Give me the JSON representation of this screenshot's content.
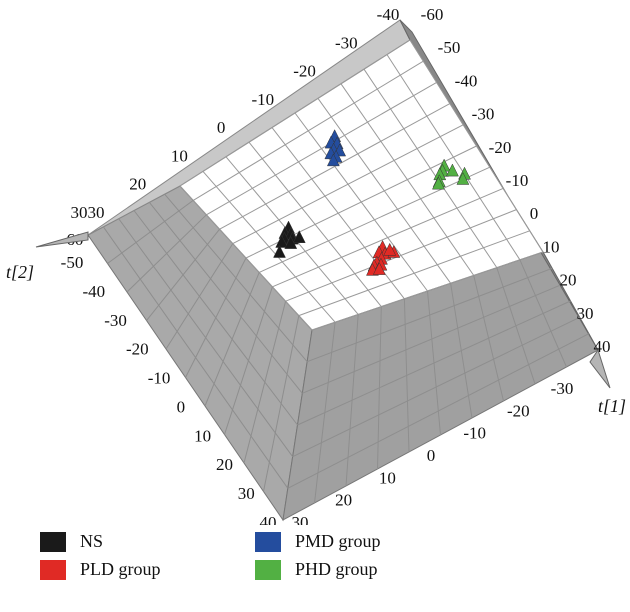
{
  "chart_data": {
    "type": "scatter",
    "view": "3d",
    "axes": {
      "t1": {
        "label": "t[1]",
        "ticks": [
          -30,
          -20,
          -10,
          0,
          10,
          20,
          30,
          40
        ]
      },
      "t2": {
        "label": "t[2]",
        "ticks": [
          -60,
          -50,
          -40,
          -30,
          -20,
          -10,
          0,
          10,
          20,
          30
        ]
      },
      "t3_bottom": {
        "ticks": [
          30,
          20,
          10,
          0,
          -10,
          -20,
          -30,
          -40,
          -50
        ]
      },
      "t3_right": {
        "ticks": [
          -60,
          -50,
          -40,
          -30,
          -20,
          -10,
          0,
          10,
          20,
          30,
          40
        ]
      },
      "t_top": {
        "ticks": [
          -40,
          -30,
          -20,
          -10,
          0,
          10,
          20,
          30
        ]
      },
      "left_extra": {
        "ticks": [
          -50,
          -40,
          -30,
          -20,
          -10,
          0,
          10,
          20,
          30,
          40
        ]
      }
    },
    "series": [
      {
        "name": "NS",
        "color": "#1a1a1a",
        "points": [
          [
            -5,
            35
          ],
          [
            -3,
            38
          ],
          [
            -1,
            36
          ],
          [
            0,
            40
          ],
          [
            2,
            37
          ],
          [
            3,
            34
          ],
          [
            1,
            42
          ],
          [
            4,
            39
          ],
          [
            6,
            46
          ]
        ]
      },
      {
        "name": "PLD group",
        "color": "#e02a25",
        "points": [
          [
            28,
            5
          ],
          [
            30,
            8
          ],
          [
            32,
            6
          ],
          [
            34,
            9
          ],
          [
            35,
            12
          ],
          [
            36,
            14
          ],
          [
            37,
            11
          ],
          [
            38,
            16
          ],
          [
            39,
            13
          ],
          [
            33,
            2
          ],
          [
            31,
            3
          ]
        ]
      },
      {
        "name": "PMD group",
        "color": "#244d9e",
        "points": [
          [
            -38,
            -8
          ],
          [
            -36,
            -5
          ],
          [
            -34,
            -7
          ],
          [
            -32,
            -4
          ],
          [
            -30,
            -6
          ],
          [
            -31,
            -2
          ],
          [
            -28,
            -3
          ],
          [
            -27,
            -1
          ]
        ]
      },
      {
        "name": "PHD group",
        "color": "#52b043",
        "points": [
          [
            2,
            -42
          ],
          [
            4,
            -40
          ],
          [
            5,
            -38
          ],
          [
            6,
            -44
          ],
          [
            8,
            -36
          ],
          [
            9,
            -35
          ],
          [
            10,
            -48
          ],
          [
            12,
            -46
          ]
        ]
      }
    ],
    "legend": {
      "position": "bottom",
      "columns": 2
    }
  }
}
